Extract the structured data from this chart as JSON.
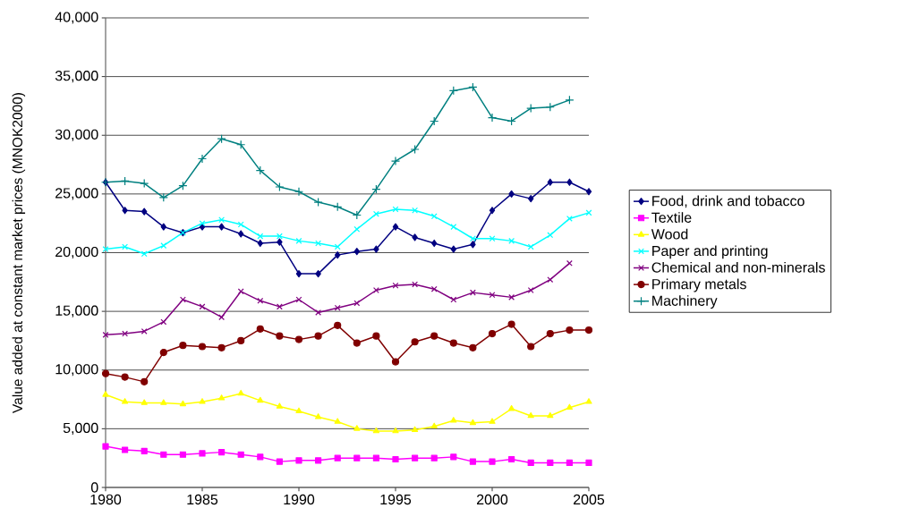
{
  "chart_data": {
    "type": "line",
    "ylabel": "Value added at constant market prices (MNOK2000)",
    "x": [
      1980,
      1981,
      1982,
      1983,
      1984,
      1985,
      1986,
      1987,
      1988,
      1989,
      1990,
      1991,
      1992,
      1993,
      1994,
      1995,
      1996,
      1997,
      1998,
      1999,
      2000,
      2001,
      2002,
      2003,
      2004,
      2005
    ],
    "xlim": [
      1980,
      2005
    ],
    "xticks": [
      1980,
      1985,
      1990,
      1995,
      2000,
      2005
    ],
    "ylim": [
      0,
      40000
    ],
    "yticks": [
      0,
      {
        "value": 5000,
        "label": "5,000"
      },
      {
        "value": 10000,
        "label": "10,000"
      },
      {
        "value": 15000,
        "label": "15,000"
      },
      {
        "value": 20000,
        "label": "20,000"
      },
      {
        "value": 25000,
        "label": "25,000"
      },
      {
        "value": 30000,
        "label": "30,000"
      },
      {
        "value": 35000,
        "label": "35,000"
      },
      {
        "value": 40000,
        "label": "40,000"
      }
    ],
    "grid": "y",
    "legend": "right",
    "series": [
      {
        "name": "Food, drink and tobacco",
        "color": "#000080",
        "marker": "diamond",
        "values": [
          26000,
          23600,
          23500,
          22200,
          21700,
          22200,
          22200,
          21600,
          20800,
          20900,
          18200,
          18200,
          19800,
          20100,
          20300,
          22200,
          21300,
          20800,
          20300,
          20700,
          23600,
          25000,
          24600,
          26000,
          26000,
          25200
        ]
      },
      {
        "name": "Textile",
        "color": "#ff00ff",
        "marker": "square",
        "values": [
          3500,
          3200,
          3100,
          2800,
          2800,
          2900,
          3000,
          2800,
          2600,
          2200,
          2300,
          2300,
          2500,
          2500,
          2500,
          2400,
          2500,
          2500,
          2600,
          2200,
          2200,
          2400,
          2100,
          2100,
          2100,
          2100
        ]
      },
      {
        "name": "Wood",
        "color": "#ffff00",
        "marker": "triangle",
        "values": [
          7900,
          7300,
          7200,
          7200,
          7100,
          7300,
          7600,
          8000,
          7400,
          6900,
          6500,
          6000,
          5600,
          5000,
          4800,
          4800,
          4900,
          5200,
          5700,
          5500,
          5600,
          6700,
          6100,
          6100,
          6800,
          7300
        ]
      },
      {
        "name": "Paper and printing",
        "color": "#00ffff",
        "marker": "cross",
        "values": [
          20300,
          20500,
          19900,
          20600,
          21700,
          22500,
          22800,
          22400,
          21400,
          21400,
          21000,
          20800,
          20500,
          22000,
          23300,
          23700,
          23600,
          23100,
          22200,
          21200,
          21200,
          21000,
          20500,
          21500,
          22900,
          23400
        ]
      },
      {
        "name": "Chemical and non-minerals",
        "color": "#800080",
        "marker": "cross",
        "values": [
          13000,
          13100,
          13300,
          14100,
          16000,
          15400,
          14500,
          16700,
          15900,
          15400,
          16000,
          14900,
          15300,
          15700,
          16800,
          17200,
          17300,
          16900,
          16000,
          16600,
          16400,
          16200,
          16800,
          17700,
          19100,
          null
        ]
      },
      {
        "name": "Primary metals",
        "color": "#800000",
        "marker": "circle",
        "values": [
          9700,
          9400,
          9000,
          11500,
          12100,
          12000,
          11900,
          12500,
          13500,
          12900,
          12600,
          12900,
          13800,
          12300,
          12900,
          10700,
          12400,
          12900,
          12300,
          11900,
          13100,
          13900,
          12000,
          13100,
          13400,
          13400
        ]
      },
      {
        "name": "Machinery",
        "color": "#008080",
        "marker": "plus",
        "values": [
          26000,
          26100,
          25900,
          24700,
          25700,
          28000,
          29700,
          29200,
          27000,
          25600,
          25200,
          24300,
          23900,
          23200,
          25400,
          27800,
          28800,
          31200,
          33800,
          34100,
          31500,
          31200,
          32300,
          32400,
          33000,
          null
        ]
      }
    ]
  }
}
